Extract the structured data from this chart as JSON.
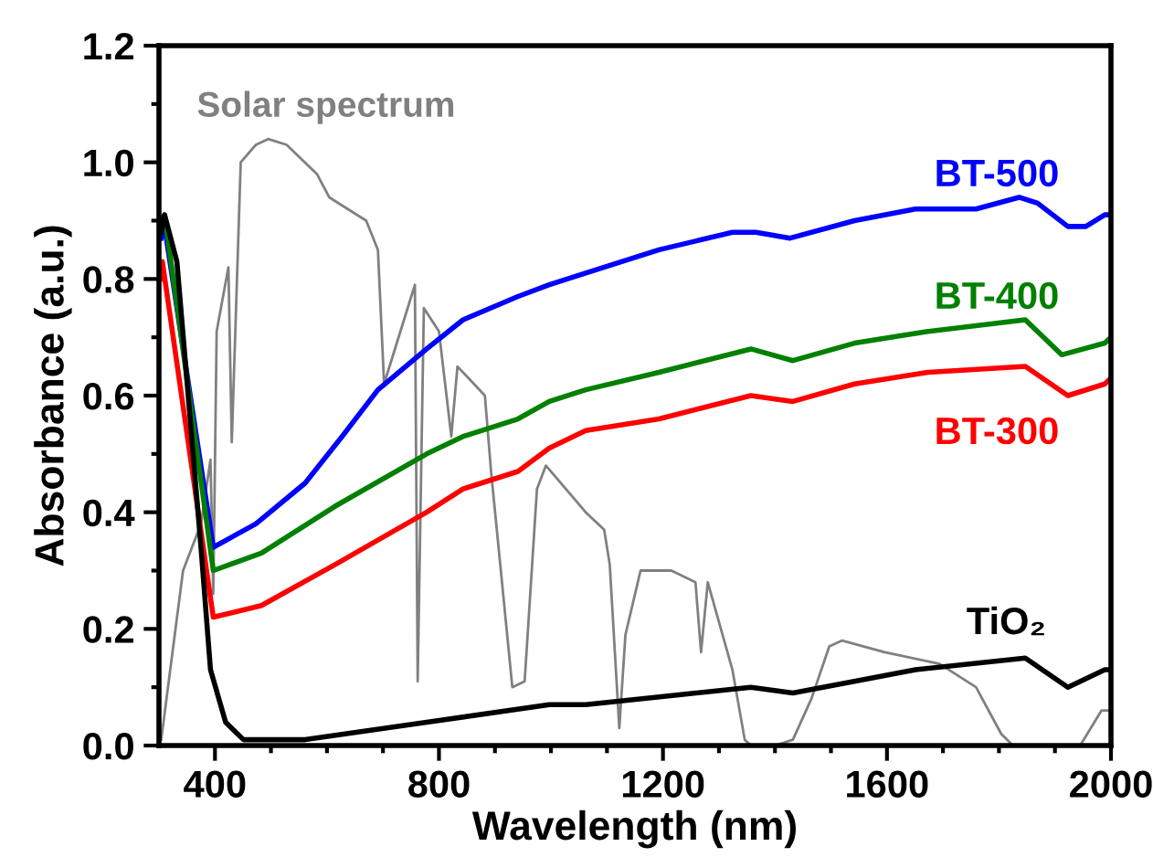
{
  "chart_data": {
    "type": "line",
    "xlabel": "Wavelength (nm)",
    "ylabel": "Absorbance (a.u.)",
    "xlim": [
      300,
      2000
    ],
    "ylim": [
      0.0,
      1.2
    ],
    "xticks": [
      400,
      {
        "value": 500,
        "label": null
      },
      {
        "value": 600,
        "label": null
      },
      {
        "value": 700,
        "label": null
      },
      800,
      {
        "value": 900,
        "label": null
      },
      {
        "value": 1000,
        "label": null
      },
      {
        "value": 1100,
        "label": null
      },
      1200,
      {
        "value": 1300,
        "label": null
      },
      {
        "value": 1400,
        "label": null
      },
      {
        "value": 1500,
        "label": null
      },
      1600,
      {
        "value": 1700,
        "label": null
      },
      {
        "value": 1800,
        "label": null
      },
      {
        "value": 1900,
        "label": null
      },
      2000
    ],
    "yticks": [
      {
        "value": 0.0,
        "label": "0.0"
      },
      {
        "value": 0.1,
        "label": null
      },
      {
        "value": 0.2,
        "label": "0.2"
      },
      {
        "value": 0.3,
        "label": null
      },
      {
        "value": 0.4,
        "label": "0.4"
      },
      {
        "value": 0.5,
        "label": null
      },
      {
        "value": 0.6,
        "label": "0.6"
      },
      {
        "value": 0.7,
        "label": null
      },
      {
        "value": 0.8,
        "label": "0.8"
      },
      {
        "value": 0.9,
        "label": null
      },
      {
        "value": 1.0,
        "label": "1.0"
      },
      {
        "value": 1.1,
        "label": null
      },
      {
        "value": 1.2,
        "label": "1.2"
      }
    ],
    "grid": false,
    "legend": false,
    "marker": "none",
    "line_style": "solid",
    "series": [
      {
        "name": "Solar spectrum",
        "color": "#808080",
        "x": [
          304,
          343,
          375,
          392,
          397,
          403,
          424,
          430,
          446,
          473,
          495,
          528,
          582,
          604,
          670,
          691,
          702,
          757,
          762,
          773,
          800,
          822,
          833,
          882,
          893,
          931,
          953,
          975,
          991,
          1062,
          1095,
          1105,
          1122,
          1133,
          1160,
          1215,
          1258,
          1268,
          1280,
          1324,
          1346,
          1357,
          1400,
          1432,
          1465,
          1497,
          1520,
          1596,
          1694,
          1759,
          1804,
          1825,
          1945,
          1983,
          2000
        ],
        "values": [
          0.01,
          0.3,
          0.38,
          0.49,
          0.26,
          0.71,
          0.82,
          0.52,
          1.0,
          1.03,
          1.04,
          1.03,
          0.98,
          0.94,
          0.9,
          0.85,
          0.62,
          0.79,
          0.11,
          0.75,
          0.71,
          0.53,
          0.65,
          0.6,
          0.47,
          0.1,
          0.11,
          0.44,
          0.48,
          0.4,
          0.37,
          0.31,
          0.03,
          0.19,
          0.3,
          0.3,
          0.28,
          0.16,
          0.28,
          0.13,
          0.01,
          0.0,
          0.0,
          0.01,
          0.08,
          0.17,
          0.18,
          0.16,
          0.14,
          0.1,
          0.02,
          0.0,
          0.0,
          0.06,
          0.06
        ]
      },
      {
        "name": "BT-500",
        "color": "#0000ff",
        "x": [
          304,
          310,
          397,
          473,
          561,
          627,
          691,
          778,
          843,
          941,
          997,
          1062,
          1193,
          1324,
          1366,
          1427,
          1542,
          1651,
          1759,
          1836,
          1869,
          1923,
          1955,
          1989,
          2000
        ],
        "values": [
          0.87,
          0.89,
          0.34,
          0.38,
          0.45,
          0.53,
          0.61,
          0.68,
          0.73,
          0.77,
          0.79,
          0.81,
          0.85,
          0.88,
          0.88,
          0.87,
          0.9,
          0.92,
          0.92,
          0.94,
          0.93,
          0.89,
          0.89,
          0.91,
          0.91
        ]
      },
      {
        "name": "BT-400",
        "color": "#008000",
        "x": [
          304,
          310,
          397,
          483,
          614,
          778,
          843,
          941,
          997,
          1062,
          1193,
          1357,
          1432,
          1542,
          1673,
          1847,
          1912,
          1989,
          2000
        ],
        "values": [
          0.9,
          0.91,
          0.3,
          0.33,
          0.41,
          0.5,
          0.53,
          0.56,
          0.59,
          0.61,
          0.64,
          0.68,
          0.66,
          0.69,
          0.71,
          0.73,
          0.67,
          0.69,
          0.7
        ]
      },
      {
        "name": "BT-300",
        "color": "#ff0000",
        "x": [
          304,
          306,
          397,
          483,
          614,
          778,
          843,
          941,
          997,
          1062,
          1193,
          1357,
          1432,
          1542,
          1673,
          1847,
          1923,
          1989,
          2000
        ],
        "values": [
          0.8,
          0.83,
          0.22,
          0.24,
          0.31,
          0.4,
          0.44,
          0.47,
          0.51,
          0.54,
          0.56,
          0.6,
          0.59,
          0.62,
          0.64,
          0.65,
          0.6,
          0.62,
          0.63
        ]
      },
      {
        "name": "TiO₂",
        "color": "#000000",
        "x": [
          304,
          310,
          332,
          375,
          392,
          419,
          451,
          561,
          778,
          997,
          1062,
          1357,
          1432,
          1651,
          1847,
          1923,
          1989,
          2000
        ],
        "values": [
          0.88,
          0.91,
          0.83,
          0.34,
          0.13,
          0.04,
          0.01,
          0.01,
          0.04,
          0.07,
          0.07,
          0.1,
          0.09,
          0.13,
          0.15,
          0.1,
          0.13,
          0.13
        ]
      }
    ]
  }
}
